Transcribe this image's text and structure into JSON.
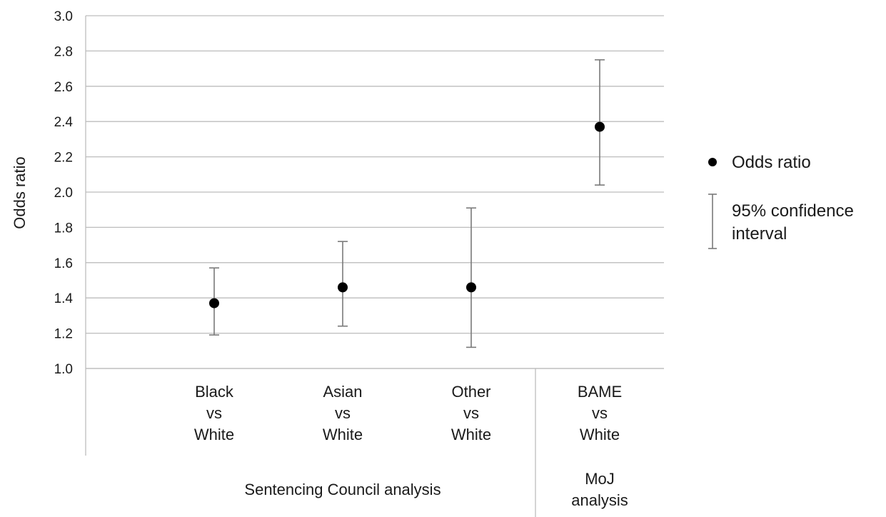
{
  "chart_data": {
    "type": "scatter",
    "title": "",
    "ylabel": "Odds ratio",
    "ylim": [
      1.0,
      3.0
    ],
    "y_ticks": [
      "1.0",
      "1.2",
      "1.4",
      "1.6",
      "1.8",
      "2.0",
      "2.2",
      "2.4",
      "2.6",
      "2.8",
      "3.0"
    ],
    "grid": true,
    "categories": [
      {
        "lines": [
          "Black",
          "vs",
          "White"
        ],
        "group": "Sentencing Council analysis"
      },
      {
        "lines": [
          "Asian",
          "vs",
          "White"
        ],
        "group": "Sentencing Council analysis"
      },
      {
        "lines": [
          "Other",
          "vs",
          "White"
        ],
        "group": "Sentencing Council analysis"
      },
      {
        "lines": [
          "BAME",
          "vs",
          "White"
        ],
        "group": "MoJ analysis"
      }
    ],
    "groups": [
      {
        "label_lines": [
          "Sentencing Council analysis"
        ]
      },
      {
        "label_lines": [
          "MoJ",
          "analysis"
        ]
      }
    ],
    "series": [
      {
        "name": "Odds ratio",
        "values": [
          1.37,
          1.46,
          1.46,
          2.37
        ],
        "ci_lower": [
          1.19,
          1.24,
          1.12,
          2.04
        ],
        "ci_upper": [
          1.57,
          1.72,
          1.91,
          2.75
        ]
      }
    ],
    "legend": {
      "placement": "right",
      "point_label": "Odds ratio",
      "interval_label_lines": [
        "95% confidence",
        "interval"
      ]
    }
  }
}
